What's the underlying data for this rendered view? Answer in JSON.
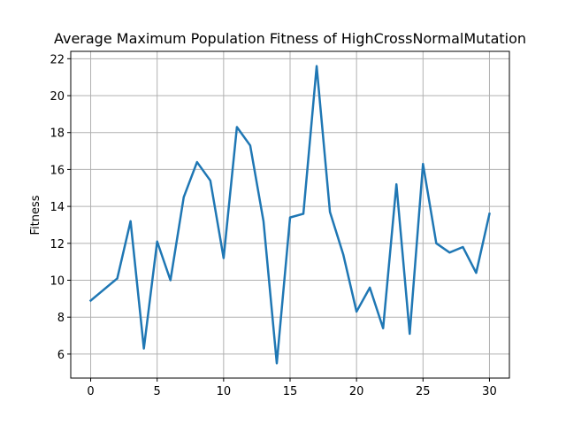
{
  "chart_data": {
    "type": "line",
    "title": "Average Maximum Population Fitness of HighCrossNormalMutation",
    "xlabel": "",
    "ylabel": "Fitness",
    "xlim": [
      -1.5,
      31.5
    ],
    "ylim": [
      4.7,
      22.4
    ],
    "xticks": [
      0,
      5,
      10,
      15,
      20,
      25,
      30
    ],
    "yticks": [
      6,
      8,
      10,
      12,
      14,
      16,
      18,
      20,
      22
    ],
    "grid": true,
    "line_color": "#1f77b4",
    "x": [
      0,
      1,
      2,
      3,
      4,
      5,
      6,
      7,
      8,
      9,
      10,
      11,
      12,
      13,
      14,
      15,
      16,
      17,
      18,
      19,
      20,
      21,
      22,
      23,
      24,
      25,
      26,
      27,
      28,
      29,
      30
    ],
    "series": [
      {
        "values": [
          8.9,
          9.5,
          10.1,
          13.2,
          6.3,
          12.1,
          10.0,
          14.5,
          16.4,
          15.4,
          11.2,
          18.3,
          17.3,
          13.2,
          5.5,
          13.4,
          13.6,
          21.6,
          13.7,
          11.4,
          8.3,
          9.6,
          7.4,
          15.2,
          7.1,
          16.3,
          12.0,
          11.5,
          11.8,
          10.4,
          13.6
        ]
      }
    ]
  }
}
